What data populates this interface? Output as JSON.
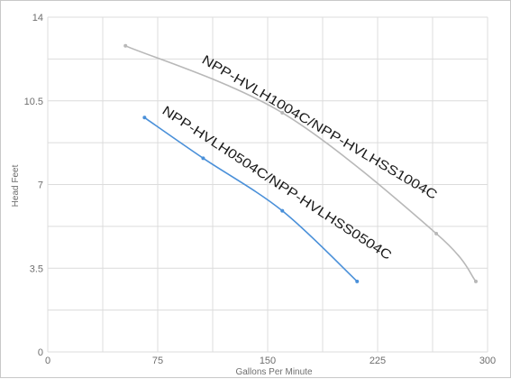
{
  "chart_data": {
    "type": "line",
    "xlabel": "Gallons Per Minute",
    "ylabel": "Head Feet",
    "xlim": [
      0,
      300
    ],
    "ylim": [
      0,
      14
    ],
    "x_ticks": [
      0,
      75,
      150,
      225,
      300
    ],
    "y_ticks": [
      0,
      3.5,
      7,
      10.5,
      14
    ],
    "x_tick_labels": [
      "0",
      "75",
      "150",
      "225",
      "300"
    ],
    "y_tick_labels": [
      "0",
      "3.5",
      "7",
      "10.5",
      "14"
    ],
    "grid": true,
    "series": [
      {
        "name": "NPP-HVLH1004C/NPP-HVLHSS1004C",
        "color": "#b8b8b8",
        "x": [
          53,
          160,
          265,
          292
        ],
        "y": [
          12.8,
          10.0,
          4.95,
          2.95
        ]
      },
      {
        "name": "NPP-HVLH0504C/NPP-HVLHSS0504C",
        "color": "#4a90d9",
        "x": [
          66,
          106,
          160,
          211
        ],
        "y": [
          9.8,
          8.1,
          5.9,
          2.95
        ]
      }
    ]
  }
}
